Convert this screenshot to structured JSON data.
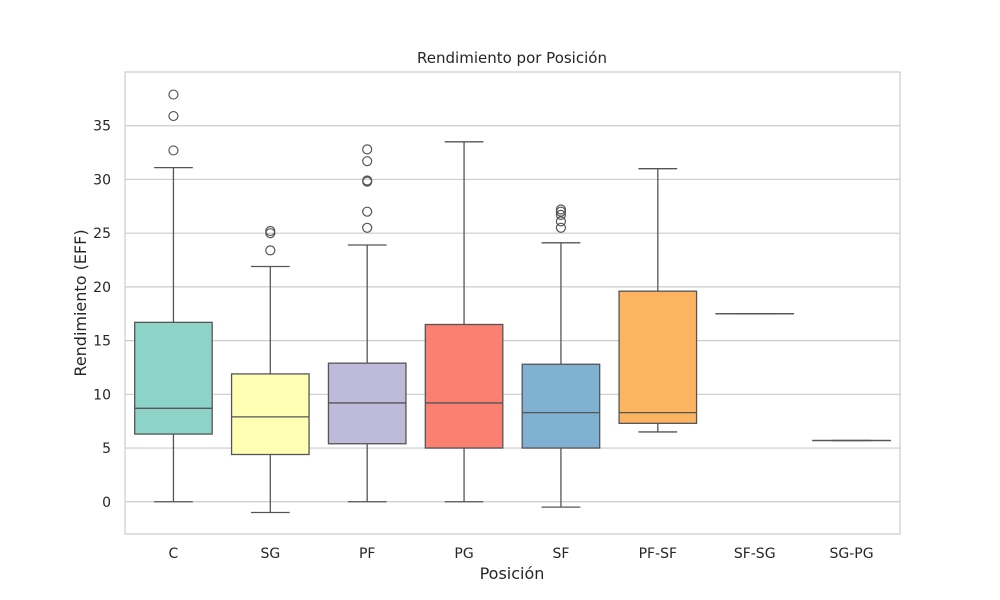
{
  "chart_data": {
    "type": "box",
    "title": "Rendimiento  por Posición",
    "xlabel": "Posición",
    "ylabel": "Rendimiento (EFF)",
    "ylim": [
      -3,
      40
    ],
    "yticks": [
      0,
      5,
      10,
      15,
      20,
      25,
      30,
      35
    ],
    "grid": true,
    "categories": [
      "C",
      "SG",
      "PF",
      "PG",
      "SF",
      "PF-SF",
      "SF-SG",
      "SG-PG"
    ],
    "boxes": [
      {
        "category": "C",
        "whisker_low": 0,
        "q1": 6.3,
        "median": 8.7,
        "q3": 16.7,
        "whisker_high": 31.1,
        "outliers": [
          32.7,
          35.9,
          37.9
        ],
        "color": "#8dd3c7"
      },
      {
        "category": "SG",
        "whisker_low": -1.0,
        "q1": 4.4,
        "median": 7.9,
        "q3": 11.9,
        "whisker_high": 21.9,
        "outliers": [
          23.4,
          25.0,
          25.2
        ],
        "color": "#ffffb3"
      },
      {
        "category": "PF",
        "whisker_low": 0,
        "q1": 5.4,
        "median": 9.2,
        "q3": 12.9,
        "whisker_high": 23.9,
        "outliers": [
          25.5,
          27.0,
          29.8,
          29.9,
          31.7,
          32.8
        ],
        "color": "#bebada"
      },
      {
        "category": "PG",
        "whisker_low": 0,
        "q1": 5.0,
        "median": 9.2,
        "q3": 16.5,
        "whisker_high": 33.5,
        "outliers": [],
        "color": "#fb8072"
      },
      {
        "category": "SF",
        "whisker_low": -0.5,
        "q1": 5.0,
        "median": 8.3,
        "q3": 12.8,
        "whisker_high": 24.1,
        "outliers": [
          25.5,
          26.1,
          26.7,
          27.0,
          27.2
        ],
        "color": "#80b1d3"
      },
      {
        "category": "PF-SF",
        "whisker_low": 6.5,
        "q1": 7.3,
        "median": 8.3,
        "q3": 19.6,
        "whisker_high": 31.0,
        "outliers": [],
        "color": "#fdb462"
      },
      {
        "category": "SF-SG",
        "whisker_low": 17.5,
        "q1": 17.5,
        "median": 17.5,
        "q3": 17.5,
        "whisker_high": 17.5,
        "outliers": [],
        "color": "#b3de69"
      },
      {
        "category": "SG-PG",
        "whisker_low": 5.7,
        "q1": 5.7,
        "median": 5.7,
        "q3": 5.7,
        "whisker_high": 5.7,
        "outliers": [],
        "color": "#fccde5"
      }
    ]
  }
}
